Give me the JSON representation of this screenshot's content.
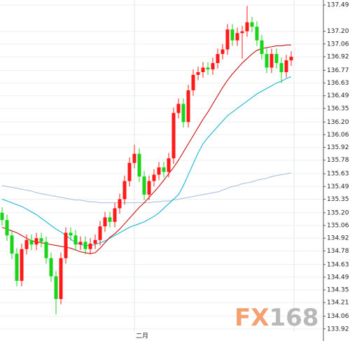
{
  "chart_data": {
    "type": "candlestick",
    "categories": [
      null,
      null,
      null,
      null,
      null,
      null,
      null,
      null,
      null,
      null,
      null,
      null,
      null,
      null,
      null,
      null,
      null,
      null,
      null,
      null,
      null,
      null,
      null,
      null,
      null,
      null,
      null,
      "二月",
      null,
      null,
      null,
      null,
      null,
      null,
      null,
      null,
      null,
      null,
      null,
      null,
      null,
      null,
      null,
      null,
      null,
      null,
      null,
      null,
      null,
      null,
      null,
      null,
      null,
      null,
      null,
      null,
      null,
      null,
      null,
      null
    ],
    "open": [
      135.2,
      135.12,
      134.95,
      134.75,
      134.45,
      134.8,
      134.9,
      134.85,
      134.92,
      134.88,
      134.7,
      134.5,
      134.25,
      134.7,
      134.98,
      134.95,
      134.85,
      134.88,
      134.8,
      134.86,
      134.9,
      135.05,
      135.15,
      135.1,
      135.25,
      135.35,
      135.55,
      135.75,
      135.85,
      135.6,
      135.4,
      135.55,
      135.62,
      135.7,
      135.65,
      135.8,
      136.3,
      136.4,
      136.2,
      136.55,
      136.72,
      136.75,
      136.8,
      136.78,
      136.85,
      136.95,
      137.0,
      137.22,
      137.1,
      137.18,
      137.2,
      137.3,
      137.25,
      137.1,
      136.95,
      136.8,
      136.95,
      136.85,
      136.75,
      136.88
    ],
    "high": [
      135.26,
      135.18,
      135.01,
      134.81,
      134.86,
      134.96,
      134.96,
      134.98,
      134.98,
      134.94,
      134.76,
      134.56,
      134.76,
      135.04,
      135.04,
      135.01,
      134.94,
      134.94,
      134.92,
      134.96,
      135.11,
      135.21,
      135.21,
      135.31,
      135.41,
      135.61,
      135.81,
      135.95,
      135.91,
      135.66,
      135.61,
      135.68,
      135.76,
      135.76,
      135.86,
      136.36,
      136.46,
      136.46,
      136.61,
      136.78,
      136.81,
      136.86,
      136.86,
      136.91,
      137.01,
      137.06,
      137.28,
      137.28,
      137.24,
      137.26,
      137.48,
      137.36,
      137.31,
      137.16,
      137.01,
      137.01,
      137.01,
      136.91,
      136.94,
      136.98
    ],
    "low": [
      135.06,
      134.89,
      134.69,
      134.39,
      134.39,
      134.74,
      134.79,
      134.79,
      134.82,
      134.64,
      134.44,
      134.08,
      134.19,
      134.64,
      134.89,
      134.79,
      134.79,
      134.74,
      134.74,
      134.8,
      134.84,
      134.99,
      135.04,
      135.04,
      135.19,
      135.29,
      135.49,
      135.69,
      135.54,
      135.34,
      135.34,
      135.49,
      135.56,
      135.59,
      135.59,
      135.74,
      136.24,
      136.14,
      136.14,
      136.49,
      136.66,
      136.69,
      136.72,
      136.72,
      136.79,
      136.89,
      136.94,
      137.04,
      137.04,
      136.9,
      137.14,
      137.19,
      137.04,
      136.89,
      136.74,
      136.74,
      136.79,
      136.63,
      136.69,
      136.82
    ],
    "close": [
      135.12,
      134.95,
      134.75,
      134.45,
      134.8,
      134.9,
      134.85,
      134.92,
      134.88,
      134.7,
      134.5,
      134.25,
      134.7,
      134.98,
      134.95,
      134.85,
      134.88,
      134.8,
      134.86,
      134.9,
      135.05,
      135.15,
      135.1,
      135.25,
      135.35,
      135.55,
      135.75,
      135.85,
      135.6,
      135.4,
      135.55,
      135.62,
      135.7,
      135.65,
      135.8,
      136.3,
      136.4,
      136.2,
      136.55,
      136.72,
      136.75,
      136.8,
      136.78,
      136.85,
      136.95,
      137.0,
      137.22,
      137.1,
      137.18,
      137.2,
      137.3,
      137.25,
      137.1,
      136.95,
      136.8,
      136.95,
      136.85,
      136.75,
      136.88,
      136.92
    ],
    "up_color": "#ff1a1a",
    "down_color": "#19d419",
    "series": [
      {
        "color": "#cc1010",
        "values": [
          135.04,
          135.02,
          135.0,
          134.98,
          134.95,
          134.92,
          134.89,
          134.88,
          134.87,
          134.86,
          134.85,
          134.84,
          134.83,
          134.82,
          134.81,
          134.79,
          134.77,
          134.76,
          134.75,
          134.76,
          134.81,
          134.87,
          134.93,
          134.97,
          135.02,
          135.08,
          135.14,
          135.2,
          135.26,
          135.31,
          135.37,
          135.43,
          135.49,
          135.56,
          135.63,
          135.7,
          135.78,
          135.87,
          135.96,
          136.05,
          136.14,
          136.23,
          136.31,
          136.4,
          136.49,
          136.58,
          136.66,
          136.73,
          136.79,
          136.85,
          136.9,
          136.95,
          136.99,
          137.01,
          137.02,
          137.03,
          137.04,
          137.04,
          137.05,
          137.05
        ]
      },
      {
        "color": "#1ab4d6",
        "values": [
          135.35,
          135.33,
          135.31,
          135.29,
          135.27,
          135.24,
          135.21,
          135.18,
          135.14,
          135.1,
          135.06,
          135.02,
          134.99,
          134.95,
          134.91,
          134.87,
          134.85,
          134.84,
          134.84,
          134.85,
          134.87,
          134.89,
          134.92,
          134.95,
          134.98,
          135.01,
          135.04,
          135.06,
          135.08,
          135.1,
          135.13,
          135.16,
          135.2,
          135.25,
          135.3,
          135.35,
          135.4,
          135.5,
          135.62,
          135.74,
          135.86,
          135.96,
          136.03,
          136.09,
          136.15,
          136.21,
          136.27,
          136.31,
          136.35,
          136.39,
          136.43,
          136.47,
          136.51,
          136.54,
          136.57,
          136.6,
          136.63,
          136.65,
          136.68,
          136.7
        ]
      },
      {
        "color": "#a9bfe0",
        "values": [
          135.5,
          135.49,
          135.48,
          135.47,
          135.46,
          135.45,
          135.44,
          135.42,
          135.41,
          135.4,
          135.39,
          135.38,
          135.37,
          135.36,
          135.35,
          135.34,
          135.34,
          135.33,
          135.32,
          135.32,
          135.31,
          135.31,
          135.31,
          135.31,
          135.31,
          135.31,
          135.31,
          135.31,
          135.31,
          135.31,
          135.31,
          135.32,
          135.32,
          135.33,
          135.33,
          135.34,
          135.35,
          135.36,
          135.37,
          135.38,
          135.39,
          135.4,
          135.41,
          135.42,
          135.43,
          135.45,
          135.47,
          135.49,
          135.5,
          135.52,
          135.53,
          135.54,
          135.56,
          135.57,
          135.58,
          135.6,
          135.61,
          135.62,
          135.63,
          135.64
        ]
      }
    ],
    "ylim": [
      133.787,
      137.545
    ],
    "yticks": [
      {
        "value": 137.49,
        "label": "137.49"
      },
      {
        "value": 137.2,
        "label": "137.20"
      },
      {
        "value": 137.06,
        "label": "137.06"
      },
      {
        "value": 136.92,
        "label": "136.92"
      },
      {
        "value": 136.77,
        "label": "136.77"
      },
      {
        "value": 136.63,
        "label": "136.63"
      },
      {
        "value": 136.49,
        "label": "136.49"
      },
      {
        "value": 136.35,
        "label": "136.35"
      },
      {
        "value": 136.2,
        "label": "136.20"
      },
      {
        "value": 136.06,
        "label": "136.06"
      },
      {
        "value": 135.92,
        "label": "135.92"
      },
      {
        "value": 135.78,
        "label": "135.78"
      },
      {
        "value": 135.63,
        "label": "135.63"
      },
      {
        "value": 135.49,
        "label": "135.49"
      },
      {
        "value": 135.35,
        "label": "135.35"
      },
      {
        "value": 135.2,
        "label": "135.20"
      },
      {
        "value": 135.06,
        "label": "135.06"
      },
      {
        "value": 134.92,
        "label": "134.92"
      },
      {
        "value": 134.78,
        "label": "134.78"
      },
      {
        "value": 134.63,
        "label": "134.63"
      },
      {
        "value": 134.49,
        "label": "134.49"
      },
      {
        "value": 134.35,
        "label": "134.35"
      },
      {
        "value": 134.21,
        "label": "134.21"
      },
      {
        "value": 134.06,
        "label": "134.06"
      },
      {
        "value": 133.92,
        "label": "133.92"
      }
    ],
    "grid": true,
    "watermark": {
      "prefix": "FX",
      "suffix": "168"
    }
  }
}
